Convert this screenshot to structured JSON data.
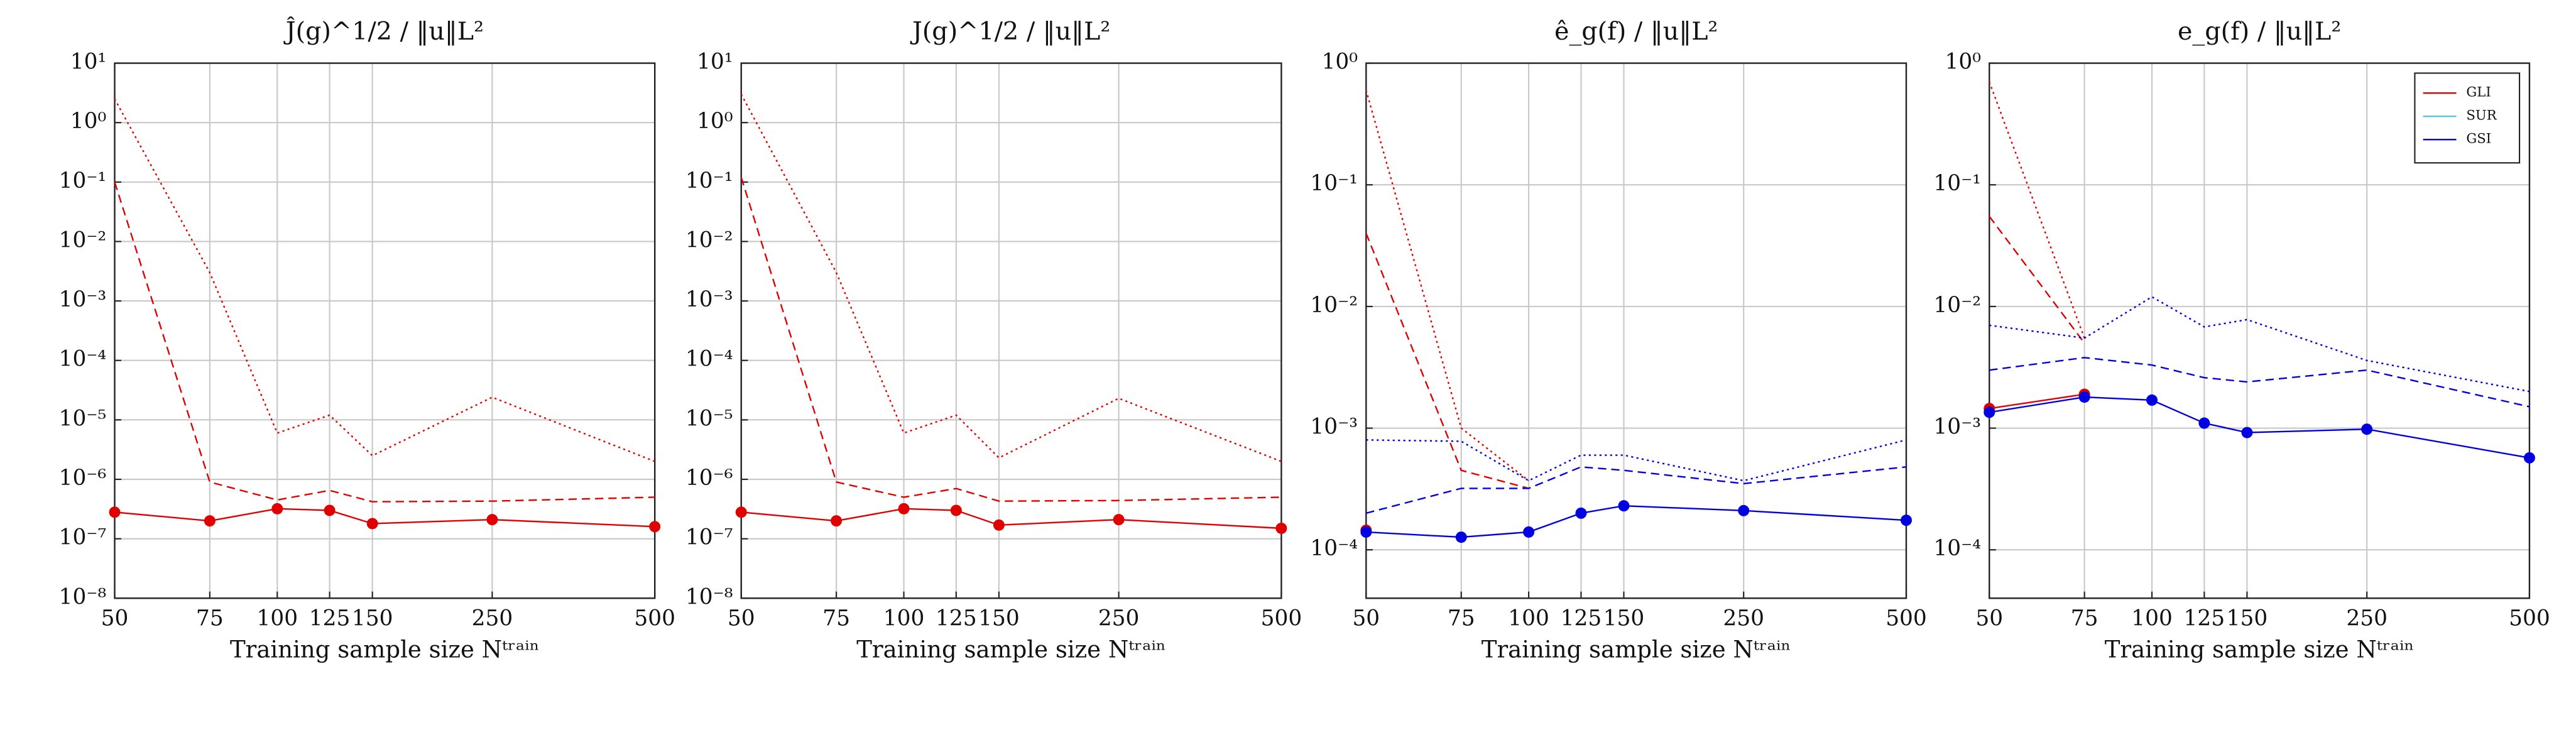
{
  "chart_data": [
    {
      "type": "line",
      "title": "Ĵ(g)^1/2 / ‖u‖L²",
      "x_label": "Training sample size Nᵗʳᵃⁱⁿ",
      "x": [
        50,
        75,
        100,
        125,
        150,
        250,
        500
      ],
      "xlim": [
        50,
        500
      ],
      "xticks": [
        50,
        75,
        100,
        125,
        150,
        250,
        500
      ],
      "x_log": true,
      "y_log": true,
      "grid": true,
      "ylim": [
        1e-08,
        10
      ],
      "yticks": [
        {
          "value": 1e-08,
          "label": "10⁻⁸"
        },
        {
          "value": 1e-07,
          "label": "10⁻⁷"
        },
        {
          "value": 1e-06,
          "label": "10⁻⁶"
        },
        {
          "value": 1e-05,
          "label": "10⁻⁵"
        },
        {
          "value": 0.0001,
          "label": "10⁻⁴"
        },
        {
          "value": 0.001,
          "label": "10⁻³"
        },
        {
          "value": 0.01,
          "label": "10⁻²"
        },
        {
          "value": 0.1,
          "label": "10⁻¹"
        },
        {
          "value": 1,
          "label": "10⁰"
        },
        {
          "value": 10,
          "label": "10¹"
        }
      ],
      "series": [
        {
          "color": "#e00000",
          "dash": "dotted",
          "marker": false,
          "values": [
            2.5,
            0.003,
            6e-06,
            1.2e-05,
            2.5e-06,
            2.4e-05,
            2e-06
          ]
        },
        {
          "color": "#e00000",
          "dash": "dashed",
          "marker": false,
          "values": [
            0.1,
            9e-07,
            4.5e-07,
            6.5e-07,
            4.2e-07,
            4.3e-07,
            5e-07
          ]
        },
        {
          "color": "#e00000",
          "dash": "solid",
          "marker": true,
          "values": [
            2.8e-07,
            2e-07,
            3.2e-07,
            3e-07,
            1.8e-07,
            2.1e-07,
            1.6e-07
          ]
        }
      ]
    },
    {
      "type": "line",
      "title": "J(g)^1/2 / ‖u‖L²",
      "x_label": "Training sample size Nᵗʳᵃⁱⁿ",
      "x": [
        50,
        75,
        100,
        125,
        150,
        250,
        500
      ],
      "xlim": [
        50,
        500
      ],
      "xticks": [
        50,
        75,
        100,
        125,
        150,
        250,
        500
      ],
      "x_log": true,
      "y_log": true,
      "grid": true,
      "ylim": [
        1e-08,
        10
      ],
      "yticks": [
        {
          "value": 1e-08,
          "label": "10⁻⁸"
        },
        {
          "value": 1e-07,
          "label": "10⁻⁷"
        },
        {
          "value": 1e-06,
          "label": "10⁻⁶"
        },
        {
          "value": 1e-05,
          "label": "10⁻⁵"
        },
        {
          "value": 0.0001,
          "label": "10⁻⁴"
        },
        {
          "value": 0.001,
          "label": "10⁻³"
        },
        {
          "value": 0.01,
          "label": "10⁻²"
        },
        {
          "value": 0.1,
          "label": "10⁻¹"
        },
        {
          "value": 1,
          "label": "10⁰"
        },
        {
          "value": 10,
          "label": "10¹"
        }
      ],
      "series": [
        {
          "color": "#e00000",
          "dash": "dotted",
          "marker": false,
          "values": [
            3,
            0.003,
            6e-06,
            1.2e-05,
            2.3e-06,
            2.3e-05,
            2e-06
          ]
        },
        {
          "color": "#e00000",
          "dash": "dashed",
          "marker": false,
          "values": [
            0.12,
            9e-07,
            5e-07,
            7e-07,
            4.3e-07,
            4.4e-07,
            5e-07
          ]
        },
        {
          "color": "#e00000",
          "dash": "solid",
          "marker": true,
          "values": [
            2.8e-07,
            2e-07,
            3.2e-07,
            3e-07,
            1.7e-07,
            2.1e-07,
            1.5e-07
          ]
        }
      ]
    },
    {
      "type": "line",
      "title": "ê_g(f) / ‖u‖L²",
      "x_label": "Training sample size Nᵗʳᵃⁱⁿ",
      "x": [
        50,
        75,
        100,
        125,
        150,
        250,
        500
      ],
      "xlim": [
        50,
        500
      ],
      "xticks": [
        50,
        75,
        100,
        125,
        150,
        250,
        500
      ],
      "x_log": true,
      "y_log": true,
      "grid": true,
      "ylim": [
        4e-05,
        1
      ],
      "yticks": [
        {
          "value": 0.0001,
          "label": "10⁻⁴"
        },
        {
          "value": 0.001,
          "label": "10⁻³"
        },
        {
          "value": 0.01,
          "label": "10⁻²"
        },
        {
          "value": 0.1,
          "label": "10⁻¹"
        },
        {
          "value": 1,
          "label": "10⁰"
        }
      ],
      "series": [
        {
          "color": "#e00000",
          "dash": "dotted",
          "marker": false,
          "values": [
            0.6,
            0.001,
            0.00037,
            null,
            null,
            null,
            null
          ]
        },
        {
          "color": "#e00000",
          "dash": "dashed",
          "marker": false,
          "values": [
            0.04,
            0.00045,
            0.00032,
            null,
            null,
            null,
            null
          ]
        },
        {
          "color": "#e00000",
          "dash": "solid",
          "marker": true,
          "values": [
            0.000145,
            null,
            null,
            null,
            null,
            null,
            null
          ]
        },
        {
          "color": "#0000e0",
          "dash": "dotted",
          "marker": false,
          "values": [
            0.0008,
            0.00078,
            0.00037,
            0.0006,
            0.0006,
            0.00037,
            0.0008
          ]
        },
        {
          "color": "#0000e0",
          "dash": "dashed",
          "marker": false,
          "values": [
            0.0002,
            0.00032,
            0.00032,
            0.00048,
            0.00045,
            0.00035,
            0.00048
          ]
        },
        {
          "color": "#0000e0",
          "dash": "solid",
          "marker": true,
          "values": [
            0.00014,
            0.000127,
            0.00014,
            0.0002,
            0.00023,
            0.00021,
            0.000175
          ]
        }
      ]
    },
    {
      "type": "line",
      "title": "e_g(f) / ‖u‖L²",
      "x_label": "Training sample size Nᵗʳᵃⁱⁿ",
      "x": [
        50,
        75,
        100,
        125,
        150,
        250,
        500
      ],
      "xlim": [
        50,
        500
      ],
      "xticks": [
        50,
        75,
        100,
        125,
        150,
        250,
        500
      ],
      "x_log": true,
      "y_log": true,
      "grid": true,
      "ylim": [
        4e-05,
        1
      ],
      "yticks": [
        {
          "value": 0.0001,
          "label": "10⁻⁴"
        },
        {
          "value": 0.001,
          "label": "10⁻³"
        },
        {
          "value": 0.01,
          "label": "10⁻²"
        },
        {
          "value": 0.1,
          "label": "10⁻¹"
        },
        {
          "value": 1,
          "label": "10⁰"
        }
      ],
      "series": [
        {
          "color": "#e00000",
          "dash": "dotted",
          "marker": false,
          "values": [
            0.7,
            0.0055,
            null,
            null,
            null,
            null,
            null
          ]
        },
        {
          "color": "#e00000",
          "dash": "dashed",
          "marker": false,
          "values": [
            0.055,
            0.005,
            null,
            null,
            null,
            null,
            null
          ]
        },
        {
          "color": "#e00000",
          "dash": "solid",
          "marker": true,
          "values": [
            0.00145,
            0.0019,
            null,
            null,
            null,
            null,
            null
          ]
        },
        {
          "color": "#0000e0",
          "dash": "dotted",
          "marker": false,
          "values": [
            0.007,
            0.0055,
            0.012,
            0.0068,
            0.0078,
            0.0036,
            0.002
          ]
        },
        {
          "color": "#0000e0",
          "dash": "dashed",
          "marker": false,
          "values": [
            0.003,
            0.0038,
            0.0033,
            0.0026,
            0.0024,
            0.003,
            0.0015
          ]
        },
        {
          "color": "#0000e0",
          "dash": "solid",
          "marker": true,
          "values": [
            0.00135,
            0.0018,
            0.0017,
            0.0011,
            0.00092,
            0.00098,
            0.00057
          ]
        }
      ],
      "legend": {
        "position": "upper right",
        "entries": [
          {
            "name": "GLI",
            "color": "#e00000"
          },
          {
            "name": "SUR",
            "color": "#5bc0de"
          },
          {
            "name": "GSI",
            "color": "#0000e0"
          }
        ]
      }
    }
  ]
}
